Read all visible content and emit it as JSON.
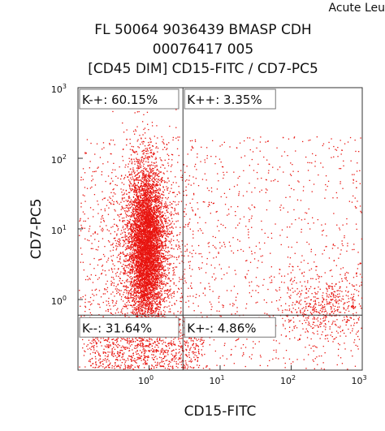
{
  "header": {
    "corner_text": "Acute Leu",
    "title_line1": "FL 50064 9036439 BMASP CDH",
    "title_line2": "00076417 005",
    "title_line3": "[CD45 DIM] CD15-FITC / CD7-PC5"
  },
  "chart_data": {
    "type": "scatter",
    "xlabel": "CD15-FITC",
    "ylabel": "CD7-PC5",
    "x_scale": "log",
    "y_scale": "log",
    "xlim": [
      0.1,
      1000
    ],
    "ylim": [
      0.1,
      1000
    ],
    "x_ticks": [
      {
        "base": "10",
        "exp": "0",
        "value": 1
      },
      {
        "base": "10",
        "exp": "1",
        "value": 10
      },
      {
        "base": "10",
        "exp": "2",
        "value": 100
      },
      {
        "base": "10",
        "exp": "3",
        "value": 1000
      }
    ],
    "y_ticks": [
      {
        "base": "10",
        "exp": "0",
        "value": 1
      },
      {
        "base": "10",
        "exp": "1",
        "value": 10
      },
      {
        "base": "10",
        "exp": "2",
        "value": 100
      },
      {
        "base": "10",
        "exp": "3",
        "value": 1000
      }
    ],
    "gate": {
      "x": 3,
      "y": 0.6
    },
    "point_color": "#e8140f",
    "quadrants": [
      {
        "id": "upper-left",
        "label": "K-+: 60.15%",
        "percent": 60.15
      },
      {
        "id": "upper-right",
        "label": "K++: 3.35%",
        "percent": 3.35
      },
      {
        "id": "lower-left",
        "label": "K--: 31.64%",
        "percent": 31.64
      },
      {
        "id": "lower-right",
        "label": "K+-: 4.86%",
        "percent": 4.86
      }
    ]
  }
}
